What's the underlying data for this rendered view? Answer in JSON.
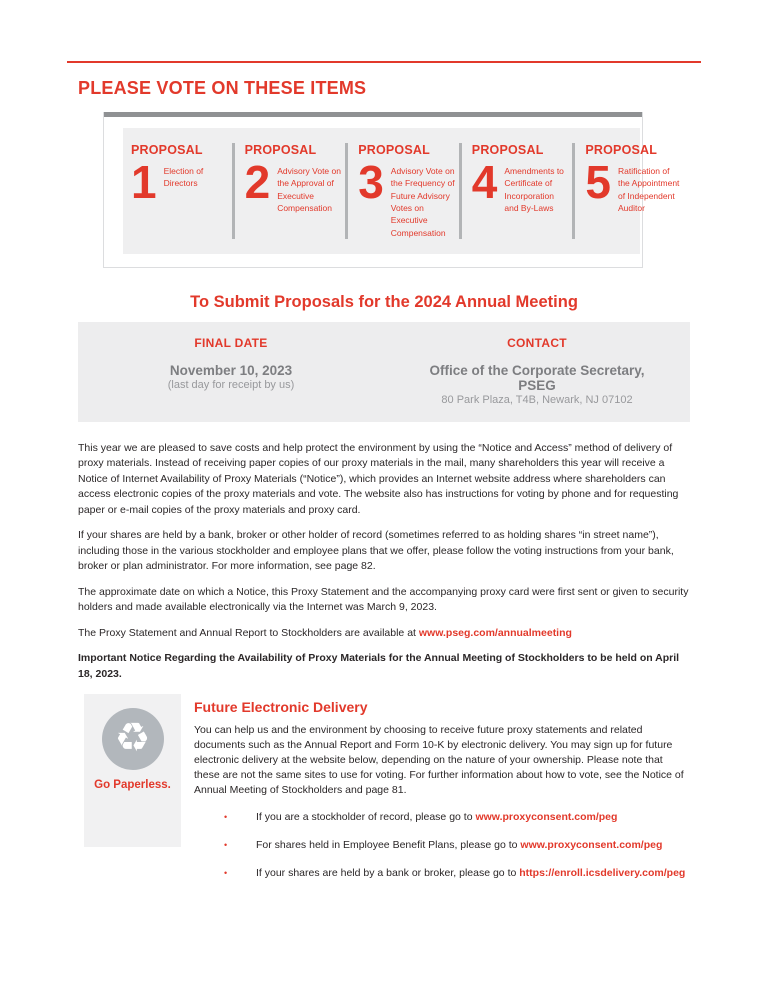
{
  "colors": {
    "accent_red": "#e2392b",
    "bar_gray": "#8f9193",
    "panel_gray": "#efeff0",
    "info_gray": "#ededee",
    "muted_gray_text": "#7d7e81",
    "light_gray_text": "#98999c"
  },
  "header": {
    "title": "PLEASE VOTE ON THESE ITEMS"
  },
  "proposals": {
    "label": "PROPOSAL",
    "items": [
      {
        "number": "1",
        "description": "Election of Directors"
      },
      {
        "number": "2",
        "description": "Advisory Vote on the Approval of Executive Compensation"
      },
      {
        "number": "3",
        "description": "Advisory Vote on the Frequency of Future Advisory Votes on Executive Compensation"
      },
      {
        "number": "4",
        "description": "Amendments to Certificate of Incorporation and By-Laws"
      },
      {
        "number": "5",
        "description": "Ratification of the Appointment of Independent Auditor"
      }
    ]
  },
  "submit_section": {
    "heading": "To Submit Proposals for the 2024 Annual Meeting",
    "final_date_label": "FINAL DATE",
    "final_date": "November 10, 2023",
    "final_date_note": "(last day for receipt by us)",
    "contact_label": "CONTACT",
    "contact_name": "Office of the Corporate Secretary, PSEG",
    "contact_address": "80 Park Plaza, T4B, Newark, NJ 07102"
  },
  "body": {
    "paragraph_1": "This year we are pleased to save costs and help protect the environment by using the “Notice and Access” method of delivery of proxy materials. Instead of receiving paper copies of our proxy materials in the mail, many shareholders this year will receive a Notice of Internet Availability of Proxy Materials (“Notice”), which provides an Internet website address where shareholders can access electronic copies of the proxy materials and vote. The website also has instructions for voting by phone and for requesting paper or e-mail copies of the proxy materials and proxy card.",
    "paragraph_2": "If your shares are held by a bank, broker or other holder of record (sometimes referred to as holding shares “in street name”), including those in the various stockholder and employee plans that we offer, please follow the voting instructions from your bank, broker or plan administrator. For more information, see page 82.",
    "paragraph_3": "The approximate date on which a Notice, this Proxy Statement and the accompanying proxy card were first sent or given to security holders and made available electronically via the Internet was March 9, 2023.",
    "paragraph_4_prefix": "The Proxy Statement and Annual Report to Stockholders are available at ",
    "paragraph_4_link": "www.pseg.com/annualmeeting",
    "important_notice": "Important Notice Regarding the Availability of Proxy Materials for the Annual Meeting of Stockholders to be held on April 18, 2023."
  },
  "future_delivery": {
    "heading": "Future Electronic Delivery",
    "go_paperless": "Go Paperless.",
    "recycle_glyph": "♻",
    "body": "You can help us and the environment by choosing to receive future proxy statements and related documents such as the Annual Report and Form 10-K by electronic delivery. You may sign up for future electronic delivery at the website below, depending on the nature of your ownership. Please note that these are not the same sites to use for voting. For further information about how to vote, see the Notice of Annual Meeting of Stockholders and page 81.",
    "bullet_glyph": "•",
    "bullets": [
      {
        "text": "If you are a stockholder of record, please go to ",
        "link": "www.proxyconsent.com/peg"
      },
      {
        "text": "For shares held in Employee Benefit Plans, please go to ",
        "link": "www.proxyconsent.com/peg"
      },
      {
        "text": "If your shares are held by a bank or broker, please go to ",
        "link": "https://enroll.icsdelivery.com/peg"
      }
    ]
  }
}
